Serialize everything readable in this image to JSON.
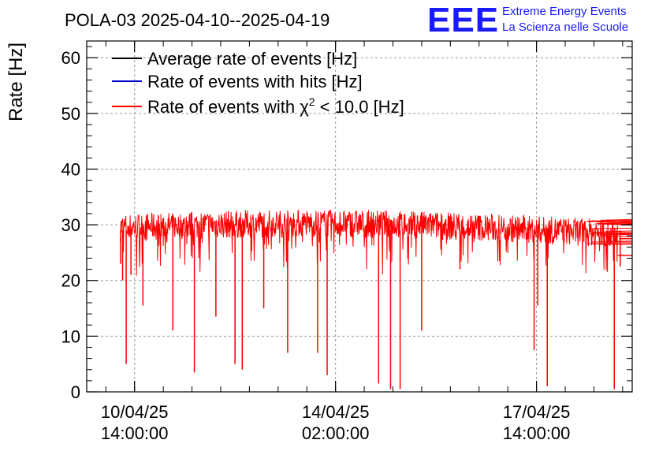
{
  "chart_data": {
    "type": "line",
    "title": "POLA-03 2025-04-10--2025-04-19",
    "ylabel": "Rate [Hz]",
    "xlabel": "",
    "ylim": [
      0,
      63
    ],
    "yticks": [
      0,
      10,
      20,
      30,
      40,
      50,
      60
    ],
    "x_range": [
      "2025-04-09 18:00",
      "2025-04-19 06:00"
    ],
    "xticks": [
      {
        "datetime": "2025-04-10 14:00",
        "date_label": "10/04/25",
        "time_label": "14:00:00"
      },
      {
        "datetime": "2025-04-14 02:00",
        "date_label": "14/04/25",
        "time_label": "02:00:00"
      },
      {
        "datetime": "2025-04-17 14:00",
        "date_label": "17/04/25",
        "time_label": "14:00:00"
      }
    ],
    "grid": true,
    "legend_position": "top-left",
    "series": [
      {
        "name": "Average rate of events [Hz]",
        "color": "#000000",
        "baseline": 30
      },
      {
        "name": "Rate of events with hits [Hz]",
        "color": "#0000cc",
        "baseline": 30
      },
      {
        "name": "Rate of events with χ² < 10.0 [Hz]",
        "name_prefix": "Rate of events with χ",
        "name_sup": "2",
        "name_suffix": " < 10.0 [Hz]",
        "color": "#ff0000",
        "baseline": 29.5
      }
    ],
    "data_start": "2025-04-10 08:00",
    "data_end": "2025-04-19 06:00",
    "dips": [
      {
        "datetime": "2025-04-10 08:10",
        "value": 23
      },
      {
        "datetime": "2025-04-10 09:00",
        "value": 20
      },
      {
        "datetime": "2025-04-10 10:30",
        "value": 5
      },
      {
        "datetime": "2025-04-10 12:30",
        "value": 21
      },
      {
        "datetime": "2025-04-10 17:30",
        "value": 15.5
      },
      {
        "datetime": "2025-04-11 06:00",
        "value": 11
      },
      {
        "datetime": "2025-04-11 15:00",
        "value": 3.5
      },
      {
        "datetime": "2025-04-12 00:00",
        "value": 13.5
      },
      {
        "datetime": "2025-04-12 08:00",
        "value": 5
      },
      {
        "datetime": "2025-04-12 11:00",
        "value": 4
      },
      {
        "datetime": "2025-04-12 20:00",
        "value": 15
      },
      {
        "datetime": "2025-04-13 06:00",
        "value": 7
      },
      {
        "datetime": "2025-04-13 18:30",
        "value": 7
      },
      {
        "datetime": "2025-04-13 22:30",
        "value": 3
      },
      {
        "datetime": "2025-04-14 20:00",
        "value": 1.5
      },
      {
        "datetime": "2025-04-15 01:00",
        "value": 0.5
      },
      {
        "datetime": "2025-04-15 05:00",
        "value": 0.5
      },
      {
        "datetime": "2025-04-15 14:00",
        "value": 11
      },
      {
        "datetime": "2025-04-16 06:00",
        "value": 22
      },
      {
        "datetime": "2025-04-17 13:00",
        "value": 7.5
      },
      {
        "datetime": "2025-04-17 14:30",
        "value": 15.5
      },
      {
        "datetime": "2025-04-17 18:30",
        "value": 1
      },
      {
        "datetime": "2025-04-18 22:30",
        "value": 0.5
      },
      {
        "datetime": "2025-04-19 01:00",
        "value": 22.5
      }
    ],
    "flat_levels": [
      {
        "from": "2025-04-19 00:00",
        "to": "2025-04-19 06:00",
        "value": 24.5
      },
      {
        "from": "2025-04-19 00:30",
        "to": "2025-04-19 06:00",
        "value": 27.5
      },
      {
        "from": "2025-04-19 00:30",
        "to": "2025-04-19 06:00",
        "value": 28.5
      }
    ]
  },
  "branding": {
    "logo": "EEE",
    "line1": "Extreme Energy Events",
    "line2": "La Scienza nelle Scuole"
  }
}
